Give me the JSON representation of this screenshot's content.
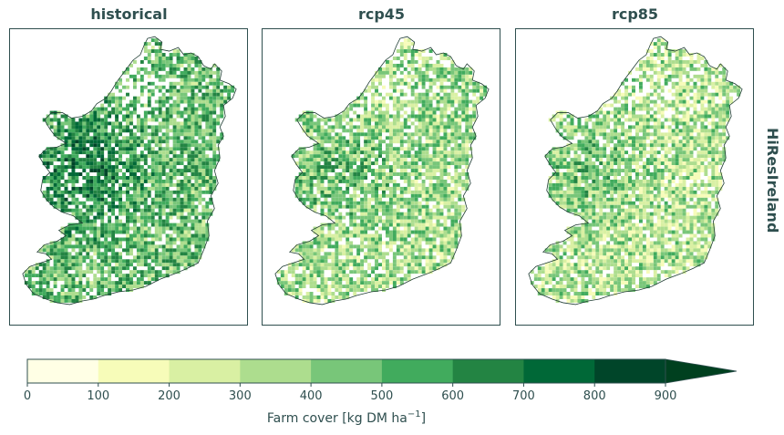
{
  "panels": [
    {
      "title": "historical",
      "level": 0.62
    },
    {
      "title": "rcp45",
      "level": 0.45
    },
    {
      "title": "rcp85",
      "level": 0.4
    }
  ],
  "row_label": "HiResIreland",
  "colorbar": {
    "label": "Farm cover [kg DM ha",
    "label_sup": "−1",
    "label_end": "]",
    "ticks": [
      "0",
      "100",
      "200",
      "300",
      "400",
      "500",
      "600",
      "700",
      "800",
      "900"
    ],
    "colors": [
      "#ffffe5",
      "#f7fcb9",
      "#d9f0a3",
      "#addd8e",
      "#78c679",
      "#41ab5d",
      "#238443",
      "#006837",
      "#004529"
    ],
    "extend": "max"
  }
}
